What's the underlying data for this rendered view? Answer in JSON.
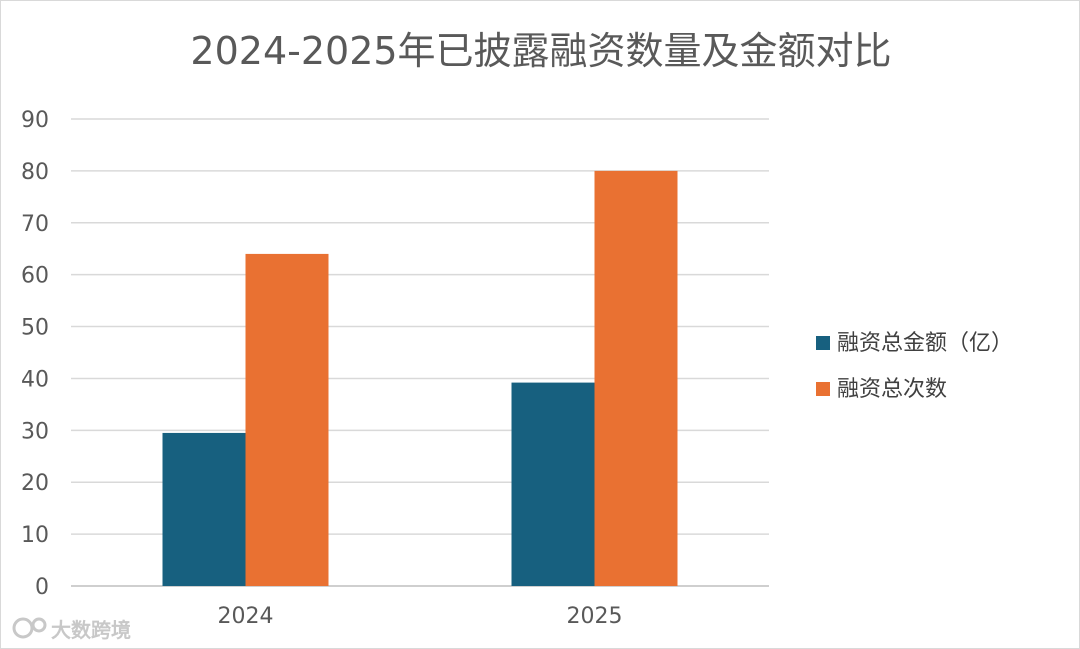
{
  "chart_data": {
    "type": "bar",
    "title": "2024-2025年已披露融资数量及金额对比",
    "categories": [
      "2024",
      "2025"
    ],
    "series": [
      {
        "name": "融资总金额（亿）",
        "color": "#17607F",
        "values": [
          29.5,
          39.2
        ]
      },
      {
        "name": "融资总次数",
        "color": "#E97132",
        "values": [
          64,
          80
        ]
      }
    ],
    "ylim": [
      0,
      90
    ],
    "yticks": [
      0,
      10,
      20,
      30,
      40,
      50,
      60,
      70,
      80,
      90
    ],
    "grid": true,
    "legend_position": "right"
  },
  "watermark": {
    "text": "大数跨境",
    "icon": "brand-logo-icon"
  }
}
